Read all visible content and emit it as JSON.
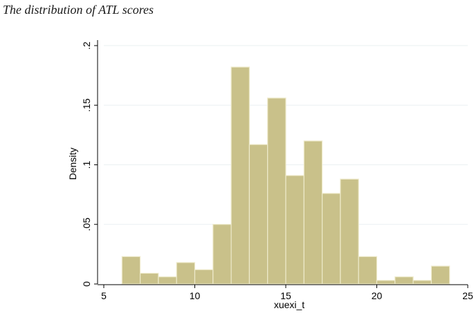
{
  "figure_caption": "The distribution of ATL scores",
  "chart_data": {
    "type": "histogram",
    "title": "",
    "xlabel": "xuexi_t",
    "ylabel": "Density",
    "xlim": [
      5,
      25
    ],
    "ylim": [
      0,
      0.2
    ],
    "x_ticks": [
      5,
      10,
      15,
      20,
      25
    ],
    "x_tick_labels": [
      "5",
      "10",
      "15",
      "20",
      "25"
    ],
    "y_ticks": [
      0,
      0.05,
      0.1,
      0.15,
      0.2
    ],
    "y_tick_labels": [
      "0",
      ".05",
      ".1",
      ".15",
      ".2"
    ],
    "grid": true,
    "bar_color": "#c9c18a",
    "bar_edge_color": "#eeeacb",
    "bins": [
      {
        "x0": 6,
        "x1": 7,
        "density": 0.023
      },
      {
        "x0": 7,
        "x1": 8,
        "density": 0.009
      },
      {
        "x0": 8,
        "x1": 9,
        "density": 0.006
      },
      {
        "x0": 9,
        "x1": 10,
        "density": 0.018
      },
      {
        "x0": 10,
        "x1": 11,
        "density": 0.012
      },
      {
        "x0": 11,
        "x1": 12,
        "density": 0.05
      },
      {
        "x0": 12,
        "x1": 13,
        "density": 0.182
      },
      {
        "x0": 13,
        "x1": 14,
        "density": 0.117
      },
      {
        "x0": 14,
        "x1": 15,
        "density": 0.156
      },
      {
        "x0": 15,
        "x1": 16,
        "density": 0.091
      },
      {
        "x0": 16,
        "x1": 17,
        "density": 0.12
      },
      {
        "x0": 17,
        "x1": 18,
        "density": 0.076
      },
      {
        "x0": 18,
        "x1": 19,
        "density": 0.088
      },
      {
        "x0": 19,
        "x1": 20,
        "density": 0.023
      },
      {
        "x0": 20,
        "x1": 21,
        "density": 0.003
      },
      {
        "x0": 21,
        "x1": 22,
        "density": 0.006
      },
      {
        "x0": 22,
        "x1": 23,
        "density": 0.003
      },
      {
        "x0": 23,
        "x1": 24,
        "density": 0.015
      }
    ]
  }
}
